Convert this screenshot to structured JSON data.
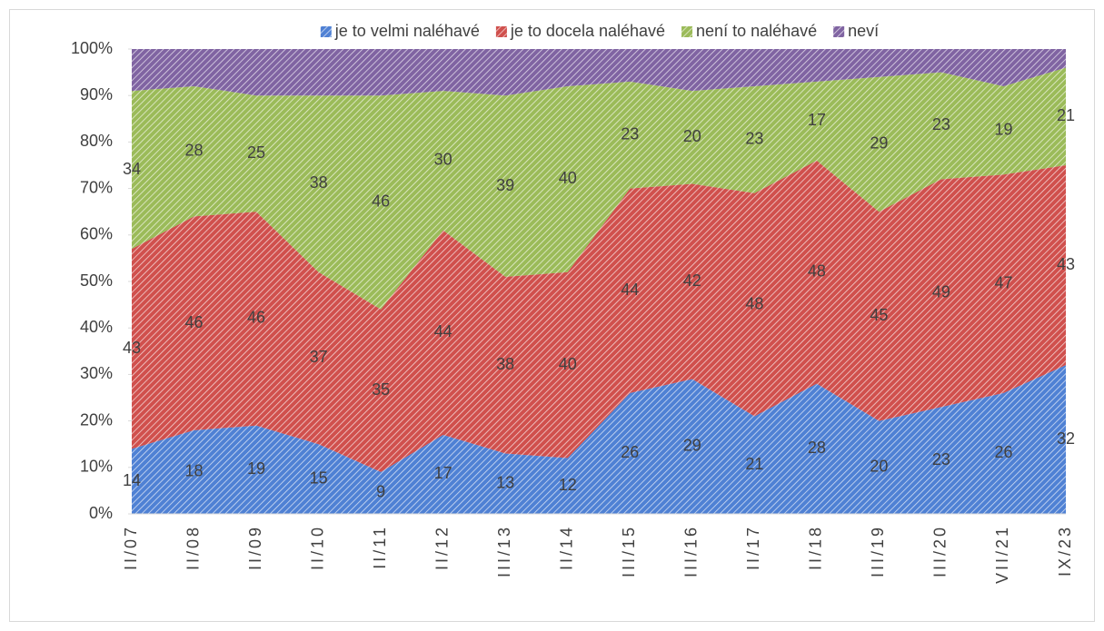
{
  "chart_data": {
    "type": "stacked_area_percent",
    "categories": [
      "II/07",
      "II/08",
      "II/09",
      "II/10",
      "II/11",
      "II/12",
      "III/13",
      "II/14",
      "III/15",
      "III/16",
      "II/17",
      "II/18",
      "III/19",
      "III/20",
      "VII/21",
      "IX/23"
    ],
    "series": [
      {
        "name": "je to velmi naléhavé",
        "color": "#4f81d4",
        "data_labels": true,
        "values": [
          14,
          18,
          19,
          15,
          9,
          17,
          13,
          12,
          26,
          29,
          21,
          28,
          20,
          23,
          26,
          32
        ]
      },
      {
        "name": "je to docela naléhavé",
        "color": "#d0504d",
        "data_labels": true,
        "values": [
          43,
          46,
          46,
          37,
          35,
          44,
          38,
          40,
          44,
          42,
          48,
          48,
          45,
          49,
          47,
          43
        ]
      },
      {
        "name": "není to naléhavé",
        "color": "#9bbb59",
        "data_labels": true,
        "values": [
          34,
          28,
          25,
          38,
          46,
          30,
          39,
          40,
          23,
          20,
          23,
          17,
          29,
          23,
          19,
          21
        ]
      },
      {
        "name": "neví",
        "color": "#8064a2",
        "data_labels": false,
        "values": [
          9,
          8,
          10,
          10,
          10,
          9,
          10,
          8,
          7,
          9,
          8,
          7,
          6,
          5,
          8,
          4
        ]
      }
    ],
    "ylim": [
      0,
      100
    ],
    "yticks": [
      {
        "value": 0,
        "label": "0%"
      },
      {
        "value": 10,
        "label": "10%"
      },
      {
        "value": 20,
        "label": "20%"
      },
      {
        "value": 30,
        "label": "30%"
      },
      {
        "value": 40,
        "label": "40%"
      },
      {
        "value": 50,
        "label": "50%"
      },
      {
        "value": 60,
        "label": "60%"
      },
      {
        "value": 70,
        "label": "70%"
      },
      {
        "value": 80,
        "label": "80%"
      },
      {
        "value": 90,
        "label": "90%"
      },
      {
        "value": 100,
        "label": "100%"
      }
    ],
    "legend": "top"
  }
}
